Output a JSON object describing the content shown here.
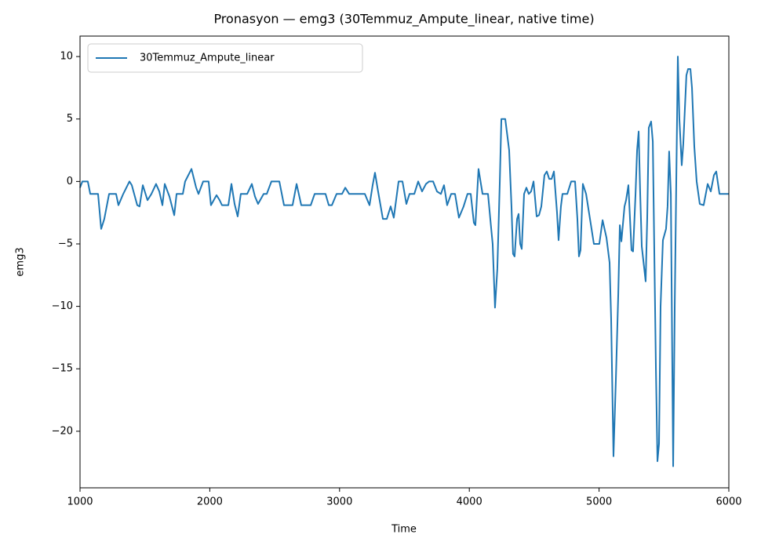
{
  "chart_data": {
    "type": "line",
    "title": "Pronasyon — emg3 (30Temmuz_Ampute_linear, native time)",
    "xlabel": "Time",
    "ylabel": "emg3",
    "legend": "upper left",
    "xlim": [
      1000,
      6000
    ],
    "xticks": [
      1000,
      2000,
      3000,
      4000,
      5000,
      6000
    ],
    "ylim": [
      -24.53,
      11.64
    ],
    "yticks": [
      {
        "value": -20,
        "label": "−20"
      },
      {
        "value": -15,
        "label": "−15"
      },
      {
        "value": -10,
        "label": "−10"
      },
      {
        "value": -5,
        "label": "−5"
      },
      0,
      5,
      10
    ],
    "x": [
      1000,
      1018,
      1060,
      1079,
      1139,
      1163,
      1187,
      1224,
      1278,
      1296,
      1333,
      1381,
      1399,
      1441,
      1459,
      1484,
      1520,
      1550,
      1586,
      1611,
      1635,
      1653,
      1689,
      1726,
      1744,
      1792,
      1810,
      1859,
      1895,
      1913,
      1949,
      1991,
      2009,
      2052,
      2076,
      2094,
      2143,
      2167,
      2191,
      2215,
      2239,
      2288,
      2324,
      2348,
      2372,
      2415,
      2439,
      2475,
      2536,
      2572,
      2638,
      2669,
      2705,
      2778,
      2808,
      2892,
      2917,
      2941,
      2977,
      3019,
      3044,
      3074,
      3195,
      3231,
      3255,
      3273,
      3297,
      3334,
      3364,
      3394,
      3418,
      3455,
      3485,
      3515,
      3539,
      3576,
      3606,
      3636,
      3666,
      3690,
      3721,
      3751,
      3781,
      3805,
      3829,
      3860,
      3890,
      3920,
      3956,
      3986,
      4011,
      4035,
      4047,
      4071,
      4102,
      4144,
      4168,
      4180,
      4198,
      4216,
      4235,
      4247,
      4277,
      4307,
      4325,
      4337,
      4349,
      4368,
      4380,
      4392,
      4404,
      4422,
      4440,
      4458,
      4476,
      4495,
      4519,
      4537,
      4555,
      4579,
      4597,
      4616,
      4634,
      4652,
      4676,
      4688,
      4706,
      4718,
      4755,
      4785,
      4815,
      4833,
      4845,
      4857,
      4875,
      4900,
      4930,
      4960,
      5002,
      5027,
      5057,
      5081,
      5093,
      5111,
      5129,
      5148,
      5160,
      5172,
      5196,
      5208,
      5226,
      5250,
      5262,
      5281,
      5293,
      5305,
      5317,
      5329,
      5359,
      5371,
      5383,
      5401,
      5414,
      5438,
      5450,
      5462,
      5474,
      5492,
      5516,
      5528,
      5540,
      5553,
      5571,
      5583,
      5607,
      5619,
      5637,
      5649,
      5673,
      5686,
      5704,
      5716,
      5734,
      5752,
      5776,
      5806,
      5837,
      5861,
      5885,
      5903,
      5928,
      6000
    ],
    "series": [
      {
        "name": "30Temmuz_Ampute_linear",
        "color": "#1f77b4",
        "values": [
          -0.5,
          0,
          0,
          -1,
          -1,
          -3.8,
          -3,
          -1,
          -1,
          -1.9,
          -1,
          0,
          -0.3,
          -1.9,
          -2,
          -0.3,
          -1.5,
          -1,
          -0.2,
          -0.8,
          -1.9,
          -0.2,
          -1.2,
          -2.7,
          -1,
          -1,
          0,
          1,
          -0.5,
          -1,
          0,
          0,
          -1.9,
          -1.1,
          -1.5,
          -1.9,
          -1.9,
          -0.2,
          -1.8,
          -2.8,
          -1,
          -1,
          -0.2,
          -1.2,
          -1.8,
          -1,
          -1,
          0,
          0,
          -1.9,
          -1.9,
          -0.2,
          -1.9,
          -1.9,
          -1,
          -1,
          -1.9,
          -1.9,
          -1,
          -1,
          -0.5,
          -1,
          -1,
          -1.9,
          -0.3,
          0.7,
          -0.8,
          -3,
          -3,
          -2,
          -2.9,
          0,
          0,
          -1.8,
          -1,
          -1,
          0,
          -0.8,
          -0.2,
          0,
          0,
          -0.8,
          -1,
          -0.3,
          -1.9,
          -1,
          -1,
          -2.9,
          -2,
          -1,
          -1,
          -3.3,
          -3.5,
          1,
          -1,
          -1,
          -3.7,
          -5,
          -10.1,
          -7,
          0,
          5,
          5,
          2.5,
          -2,
          -5.8,
          -6,
          -3,
          -2.6,
          -5,
          -5.4,
          -1,
          -0.5,
          -1,
          -0.8,
          0,
          -2.8,
          -2.7,
          -2,
          0.5,
          0.8,
          0.2,
          0.2,
          0.8,
          -2.5,
          -4.7,
          -2,
          -1,
          -1,
          0,
          0,
          -3,
          -6,
          -5.5,
          -0.2,
          -1,
          -3,
          -5,
          -5,
          -3.1,
          -4.5,
          -6.5,
          -11,
          -22,
          -16,
          -9,
          -3.5,
          -4.8,
          -2,
          -1.5,
          -0.3,
          -5.5,
          -5.6,
          -1,
          2.5,
          4,
          -1,
          -5.2,
          -8,
          -3,
          4.3,
          4.8,
          3.2,
          -15,
          -22.4,
          -21,
          -10,
          -4.7,
          -3.8,
          -2,
          2.4,
          -1,
          -22.8,
          -10,
          10,
          5,
          1.3,
          3,
          8.5,
          9,
          9,
          7.5,
          2.8,
          0,
          -1.8,
          -1.9,
          -0.2,
          -0.8,
          0.5,
          0.8,
          -1,
          -1
        ]
      }
    ]
  }
}
